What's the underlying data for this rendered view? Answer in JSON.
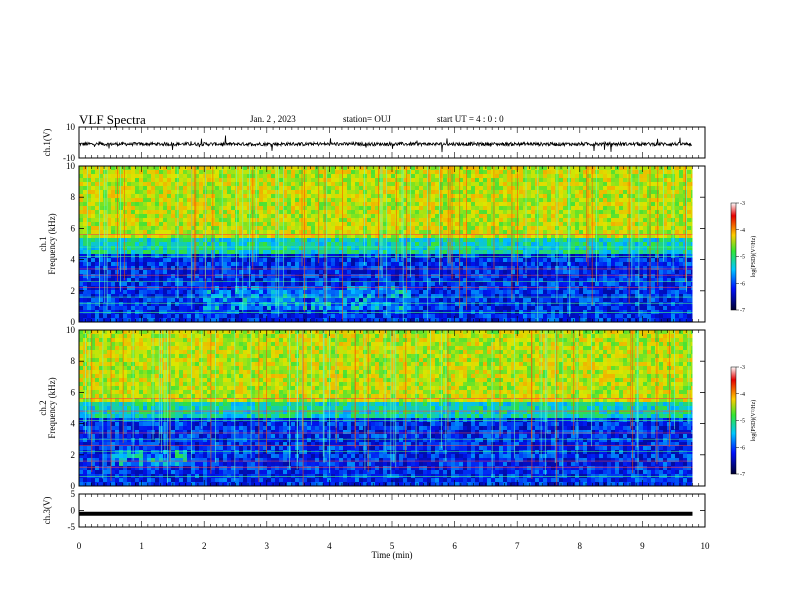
{
  "header": {
    "title": "VLF Spectra",
    "date": "Jan. 2 , 2023",
    "station": "station= OUJ",
    "start": "start  UT =   4 : 0  : 0"
  },
  "chart_data": [
    {
      "type": "line",
      "panel": "ch1 waveform",
      "ylabel": "ch.1(V)",
      "ylim": [
        -10,
        10
      ],
      "yticks": [
        "10",
        "-10"
      ],
      "xlim": [
        0,
        10
      ],
      "trace_color": "#000000"
    },
    {
      "type": "heatmap",
      "panel": "ch1 spectrogram",
      "ylabel": "ch.1\nFrequency (kHz)",
      "ylim": [
        0,
        10
      ],
      "yticks": [
        "10",
        "8",
        "6",
        "4",
        "2",
        "0"
      ],
      "xlim": [
        0,
        10
      ],
      "data_end_min": 9.8,
      "colorbar": {
        "label": "log(PSD)(V²/Hz)",
        "range": [
          -7,
          -3
        ],
        "ticks": [
          "-3",
          "-4",
          "-5",
          "-6",
          "-7"
        ]
      }
    },
    {
      "type": "heatmap",
      "panel": "ch2 spectrogram",
      "ylabel": "ch.2\nFrequency (kHz)",
      "ylim": [
        0,
        10
      ],
      "yticks": [
        "10",
        "8",
        "6",
        "4",
        "2",
        "0"
      ],
      "xlim": [
        0,
        10
      ],
      "data_end_min": 9.8,
      "colorbar": {
        "label": "log(PSD)(V²/Hz)",
        "range": [
          -7,
          -3
        ],
        "ticks": [
          "-3",
          "-4",
          "-5",
          "-6",
          "-7"
        ]
      }
    },
    {
      "type": "line",
      "panel": "ch3 waveform",
      "ylabel": "ch.3(V)",
      "ylim": [
        -5,
        5
      ],
      "yticks": [
        "5",
        "0",
        "-5"
      ],
      "xlim": [
        0,
        10
      ],
      "constant_value": -1,
      "trace_color": "#000000"
    }
  ],
  "xaxis": {
    "label": "Time (min)",
    "ticks": [
      "0",
      "1",
      "2",
      "3",
      "4",
      "5",
      "6",
      "7",
      "8",
      "9",
      "10"
    ]
  }
}
